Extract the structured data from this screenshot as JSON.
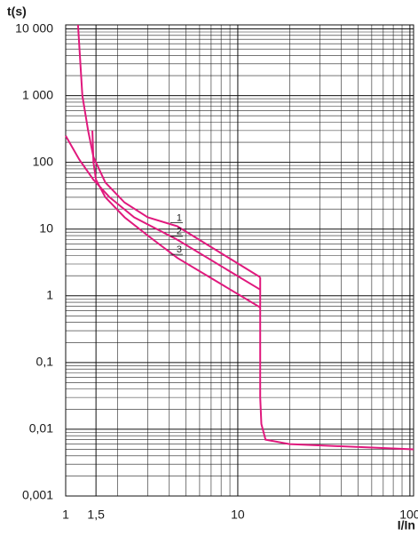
{
  "chart_data": {
    "type": "line",
    "log_x": true,
    "log_y": true,
    "grid": true,
    "x_label": "I/In",
    "y_label": "t(s)",
    "xlim": [
      1,
      105
    ],
    "ylim": [
      0.001,
      11500
    ],
    "xticks": [
      1,
      {
        "value": 1.5,
        "label": "1,5"
      },
      10,
      100
    ],
    "yticks": [
      {
        "value": 0.001,
        "label": "0,001"
      },
      {
        "value": 0.01,
        "label": "0,01"
      },
      {
        "value": 0.1,
        "label": "0,1"
      },
      1,
      10,
      100,
      {
        "value": 1000,
        "label": "1 000"
      },
      {
        "value": 10000,
        "label": "10 000"
      }
    ],
    "series": [
      {
        "name": "1",
        "color": "#e0197d",
        "x": [
          1.18,
          1.25,
          1.35,
          1.45,
          1.7,
          2.2,
          3,
          4.46,
          13.5
        ],
        "values": [
          11500,
          1000,
          300,
          120,
          50,
          25,
          15,
          11,
          1.9
        ]
      },
      {
        "name": "2",
        "color": "#e0197d",
        "x": [
          1.0,
          1.2,
          1.45,
          1.8,
          2.5,
          4.46,
          13.5
        ],
        "values": [
          250,
          110,
          55,
          30,
          15,
          6.9,
          1.24
        ]
      },
      {
        "name": "3",
        "color": "#e0197d",
        "x": [
          1.43,
          1.45,
          1.5,
          1.7,
          2.2,
          3,
          4.46,
          13.5
        ],
        "values": [
          300,
          100,
          55,
          30,
          15,
          8,
          3.7,
          0.67
        ]
      },
      {
        "color": "#e0197d",
        "x": [
          13.5,
          13.5,
          13.7,
          14.5,
          20,
          105
        ],
        "values": [
          1.9,
          0.03,
          0.012,
          0.007,
          0.006,
          0.005
        ]
      }
    ]
  }
}
